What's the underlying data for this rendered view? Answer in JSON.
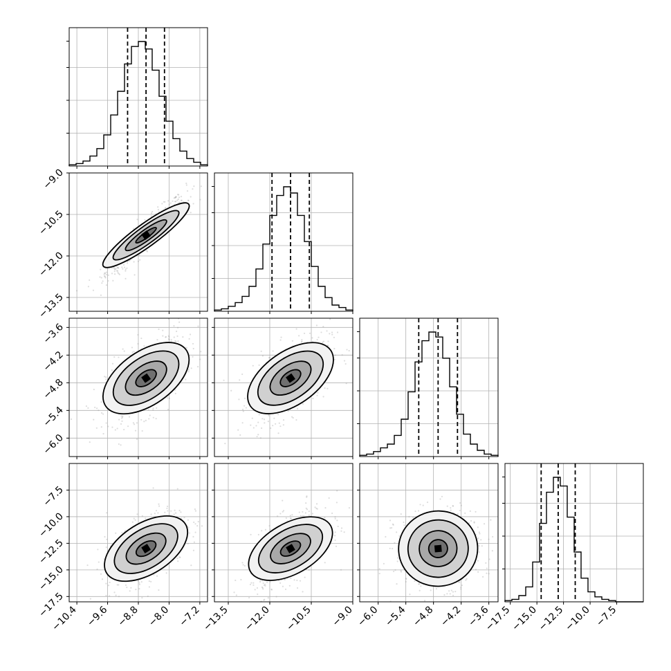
{
  "chart_data": {
    "type": "corner",
    "grid": true,
    "parameters": [
      {
        "range": [
          -10.6,
          -7.0
        ],
        "median": -8.6,
        "quantiles": [
          -9.08,
          -8.6,
          -8.12
        ],
        "ticks": [
          -10.4,
          -9.6,
          -8.8,
          -8.0,
          -7.2
        ],
        "tick_labels": [
          "−10.4",
          "−9.6",
          "−8.8",
          "−8.0",
          "−7.2"
        ],
        "hist": [
          0.01,
          0.02,
          0.04,
          0.08,
          0.14,
          0.25,
          0.41,
          0.6,
          0.82,
          0.96,
          1.0,
          0.94,
          0.77,
          0.56,
          0.36,
          0.22,
          0.12,
          0.06,
          0.03,
          0.01
        ]
      },
      {
        "range": [
          -14.0,
          -9.0
        ],
        "median": -11.25,
        "quantiles": [
          -11.92,
          -11.25,
          -10.57
        ],
        "ticks": [
          -13.5,
          -12.0,
          -10.5,
          -9.0
        ],
        "tick_labels": [
          "−13.5",
          "−12.0",
          "−10.5",
          "−9.0"
        ],
        "axis_ticks": [
          -9.0,
          -10.5,
          -12.0,
          -13.5
        ],
        "axis_tick_labels": [
          "−9.0",
          "−10.5",
          "−12.0",
          "−13.5"
        ],
        "hist": [
          0.01,
          0.02,
          0.04,
          0.07,
          0.12,
          0.2,
          0.34,
          0.54,
          0.77,
          0.93,
          1.0,
          0.95,
          0.77,
          0.56,
          0.36,
          0.2,
          0.11,
          0.05,
          0.03,
          0.01
        ]
      },
      {
        "range": [
          -6.4,
          -3.4
        ],
        "median": -4.7,
        "quantiles": [
          -5.12,
          -4.7,
          -4.28
        ],
        "ticks": [
          -6.0,
          -5.4,
          -4.8,
          -4.2,
          -3.6
        ],
        "tick_labels": [
          "−6.0",
          "−5.4",
          "−4.8",
          "−4.2",
          "−3.6"
        ],
        "axis_ticks": [
          -3.6,
          -4.2,
          -4.8,
          -5.4,
          -6.0
        ],
        "axis_tick_labels": [
          "−3.6",
          "−4.2",
          "−4.8",
          "−5.4",
          "−6.0"
        ],
        "hist": [
          0.01,
          0.02,
          0.04,
          0.07,
          0.1,
          0.17,
          0.3,
          0.52,
          0.76,
          0.93,
          1.0,
          0.96,
          0.79,
          0.56,
          0.34,
          0.18,
          0.1,
          0.05,
          0.02,
          0.01
        ]
      },
      {
        "range": [
          -18.0,
          -5.0
        ],
        "median": -13.0,
        "quantiles": [
          -14.6,
          -13.0,
          -11.4
        ],
        "ticks": [
          -17.5,
          -15.0,
          -12.5,
          -10.0,
          -7.5
        ],
        "tick_labels": [
          "−17.5",
          "−15.0",
          "−12.5",
          "−10.0",
          "−7.5"
        ],
        "axis_ticks": [
          -7.5,
          -10.0,
          -12.5,
          -15.0,
          -17.5
        ],
        "axis_tick_labels": [
          "−7.5",
          "−10.0",
          "−12.5",
          "−15.0",
          "−17.5"
        ],
        "hist": [
          0.01,
          0.02,
          0.05,
          0.12,
          0.32,
          0.63,
          0.88,
          1.0,
          0.93,
          0.68,
          0.4,
          0.19,
          0.08,
          0.04,
          0.02,
          0.01,
          0.0,
          0.0,
          0.0,
          0.0
        ]
      }
    ],
    "pairs": [
      {
        "x": 0,
        "y": 1,
        "center": [
          -8.6,
          -11.25
        ],
        "sigma": [
          0.45,
          0.62
        ],
        "rho": 0.93,
        "angle_deg": 36,
        "levels": [
          0.5,
          1.0,
          1.6,
          2.1
        ]
      },
      {
        "x": 0,
        "y": 2,
        "center": [
          -8.6,
          -4.7
        ],
        "sigma": [
          0.45,
          0.4
        ],
        "rho": 0.55,
        "angle_deg": 35,
        "levels": [
          0.5,
          1.0,
          1.6,
          2.1
        ]
      },
      {
        "x": 1,
        "y": 2,
        "center": [
          -11.25,
          -4.7
        ],
        "sigma": [
          0.62,
          0.4
        ],
        "rho": 0.55,
        "angle_deg": 35,
        "levels": [
          0.5,
          1.0,
          1.6,
          2.1
        ]
      },
      {
        "x": 0,
        "y": 3,
        "center": [
          -8.6,
          -13.0
        ],
        "sigma": [
          0.45,
          1.55
        ],
        "rho": 0.55,
        "angle_deg": 32,
        "levels": [
          0.5,
          1.0,
          1.6,
          2.1
        ]
      },
      {
        "x": 1,
        "y": 3,
        "center": [
          -11.25,
          -13.0
        ],
        "sigma": [
          0.62,
          1.55
        ],
        "rho": 0.55,
        "angle_deg": 30,
        "levels": [
          0.5,
          1.0,
          1.6,
          2.1
        ]
      },
      {
        "x": 2,
        "y": 3,
        "center": [
          -4.7,
          -13.0
        ],
        "sigma": [
          0.4,
          1.55
        ],
        "rho": 0.05,
        "angle_deg": 5,
        "levels": [
          0.5,
          1.0,
          1.6,
          2.1
        ]
      }
    ],
    "colors": {
      "line": "#000000",
      "scatter": "#9e9e9e",
      "grid": "#b0b0b0"
    }
  }
}
